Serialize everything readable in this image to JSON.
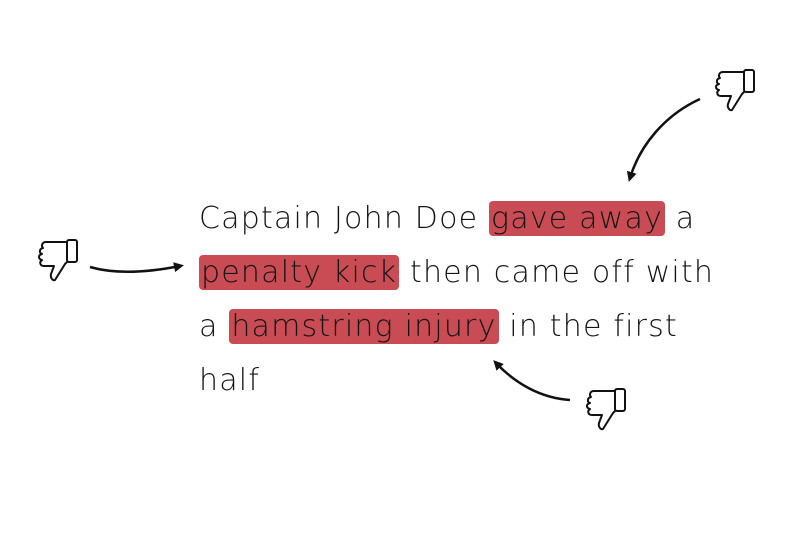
{
  "sentence": {
    "line1": {
      "pre": "Captain John Doe ",
      "highlight": "gave away",
      "post": " a"
    },
    "line2": {
      "pre": "",
      "highlight": "penalty kick",
      "post": " then came off with"
    },
    "line3": {
      "pre": "a ",
      "highlight": "hamstring injury",
      "post": " in the first"
    },
    "line4": {
      "pre": "half",
      "highlight": "",
      "post": ""
    }
  },
  "highlight_color": "#c94c55",
  "icons": [
    "thumbs-down-icon",
    "thumbs-down-icon",
    "thumbs-down-icon"
  ]
}
